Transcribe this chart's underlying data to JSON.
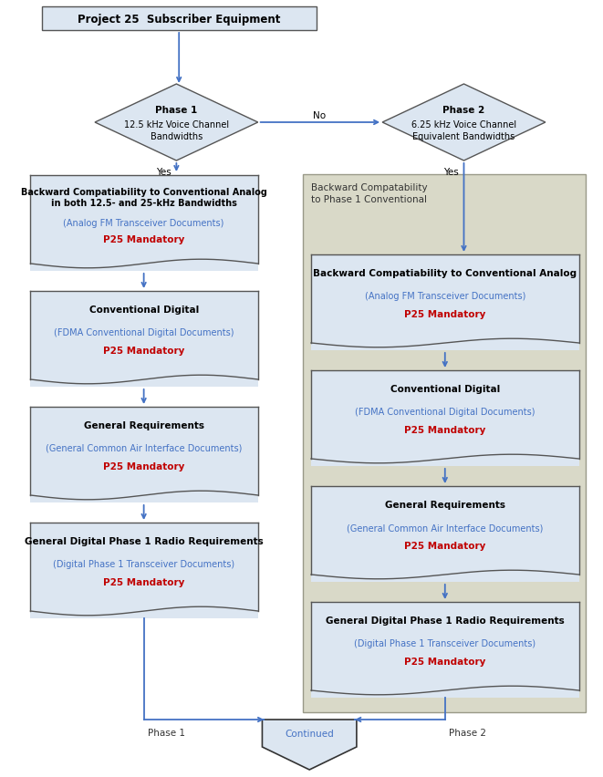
{
  "title": "Project 25  Subscriber Equipment",
  "bg_color": "#ffffff",
  "box_fill": "#dce6f1",
  "box_edge": "#555555",
  "diamond_fill": "#dce6f1",
  "diamond_edge": "#555555",
  "arrow_color": "#4472c4",
  "link_color": "#4472c4",
  "mandatory_color": "#c00000",
  "phase2_bg": "#d9d9c8",
  "phase2_border": "#999988",
  "continued_fill": "#dce6f1",
  "continued_edge": "#333333",
  "continued_text_color": "#4472c4",
  "boxes_left": [
    {
      "title_line1": "Backward Compatiability to Conventional Analog",
      "title_line2": "in both 12.5- and 25-kHz Bandwidths",
      "link": "(Analog FM Transceiver Documents)",
      "mandatory": "P25 Mandatory"
    },
    {
      "title_line1": "Conventional Digital",
      "title_line2": "",
      "link": "(FDMA Conventional Digital Documents)",
      "mandatory": "P25 Mandatory"
    },
    {
      "title_line1": "General Requirements",
      "title_line2": "",
      "link": "(General Common Air Interface Documents)",
      "mandatory": "P25 Mandatory"
    },
    {
      "title_line1": "General Digital Phase 1 Radio Requirements",
      "title_line2": "",
      "link": "(Digital Phase 1 Transceiver Documents)",
      "mandatory": "P25 Mandatory"
    }
  ],
  "boxes_right": [
    {
      "title_line1": "Backward Compatiability to Conventional Analog",
      "title_line2": "",
      "link": "(Analog FM Transceiver Documents)",
      "mandatory": "P25 Mandatory"
    },
    {
      "title_line1": "Conventional Digital",
      "title_line2": "",
      "link": "(FDMA Conventional Digital Documents)",
      "mandatory": "P25 Mandatory"
    },
    {
      "title_line1": "General Requirements",
      "title_line2": "",
      "link": "(General Common Air Interface Documents)",
      "mandatory": "P25 Mandatory"
    },
    {
      "title_line1": "General Digital Phase 1 Radio Requirements",
      "title_line2": "",
      "link": "(Digital Phase 1 Transceiver Documents)",
      "mandatory": "P25 Mandatory"
    }
  ],
  "no_label": "No",
  "yes_label_left": "Yes",
  "yes_label_right": "Yes",
  "phase1_text": "Phase 1",
  "phase2_text": "Phase 2",
  "continued_text": "Continued",
  "phase2_region_label_line1": "Backward Compatability",
  "phase2_region_label_line2": "to Phase 1 Conventional"
}
